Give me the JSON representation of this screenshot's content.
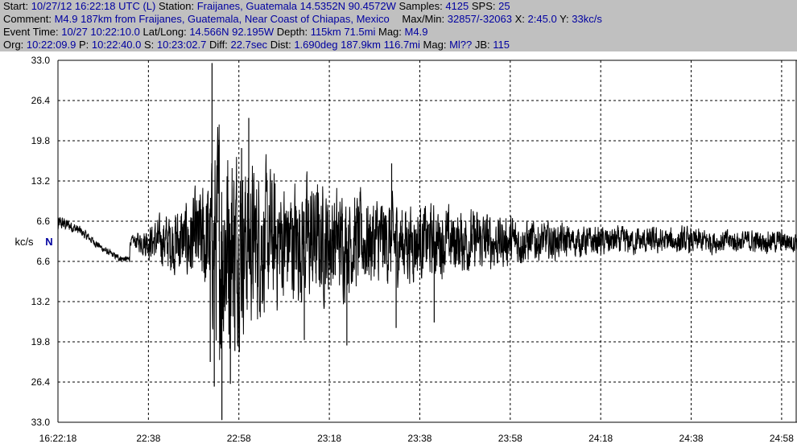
{
  "header": {
    "line1": {
      "start_label": "Start:",
      "start_value": "10/27/12 16:22:18 UTC (L)",
      "station_label": "Station:",
      "station_value": "Fraijanes, Guatemala 14.5352N 90.4572W",
      "samples_label": "Samples:",
      "samples_value": "4125",
      "sps_label": "SPS:",
      "sps_value": "25"
    },
    "line2": {
      "comment_label": "Comment:",
      "comment_value": "M4.9 187km from Fraijanes, Guatemala, Near Coast of Chiapas, Mexico",
      "maxmin_label": "Max/Min:",
      "maxmin_value": "32857/-32063",
      "x_label": "X:",
      "x_value": "2:45.0",
      "y_label": "Y:",
      "y_value": "33kc/s"
    },
    "line3": {
      "event_label": "Event Time:",
      "event_value": "10/27 10:22:10.0",
      "latlong_label": "Lat/Long:",
      "latlong_value": "14.566N 92.195W",
      "depth_label": "Depth:",
      "depth_value": "115km 71.5mi",
      "mag_label": "Mag:",
      "mag_value": "M4.9"
    },
    "line4": {
      "org_label": "Org:",
      "org_value": "10:22:09.9",
      "p_label": "P:",
      "p_value": "10:22:40.0",
      "s_label": "S:",
      "s_value": "10:23:02.7",
      "diff_label": "Diff:",
      "diff_value": "22.7sec",
      "dist_label": "Dist:",
      "dist_value": "1.690deg 187.9km 116.7mi",
      "mag_label": "Mag:",
      "mag_value": "Ml??",
      "jb_label": "JB:",
      "jb_value": "115"
    }
  },
  "chart_data": {
    "type": "line",
    "title": "",
    "xlabel": "",
    "ylabel": "kc/s",
    "center_label": "N",
    "ylim": [
      -33.0,
      33.0
    ],
    "y_tick_labels": [
      "33.0",
      "26.4",
      "19.8",
      "13.2",
      "6.6",
      "6.6",
      "13.2",
      "19.8",
      "26.4",
      "33.0"
    ],
    "x_tick_labels": [
      "16:22:18",
      "22:38",
      "22:58",
      "23:18",
      "23:38",
      "23:58",
      "24:18",
      "24:38",
      "24:58"
    ],
    "grid": true,
    "colors": {
      "trace": "#000000",
      "grid": "#000000",
      "header_bg": "#c0c0c0",
      "value_text": "#0000a0"
    },
    "series": [
      {
        "x_sec": [
          0,
          8,
          16,
          20,
          24,
          26,
          28,
          30,
          32,
          34,
          36,
          38,
          40,
          42,
          44,
          46,
          48,
          50,
          52,
          54,
          56,
          58,
          60,
          62,
          64,
          66,
          68,
          70,
          72,
          74,
          76,
          78,
          80,
          82,
          84,
          86,
          88,
          90,
          92,
          94,
          96,
          98,
          100,
          102,
          104,
          106,
          108,
          110,
          112,
          114,
          116,
          120,
          130,
          140,
          150,
          160,
          165
        ],
        "envelope": [
          2.0,
          1.0,
          0.8,
          4.5,
          7.0,
          9.0,
          9.5,
          12.0,
          14.0,
          18.0,
          33.0,
          30.0,
          25.0,
          22.0,
          20.0,
          19.0,
          18.5,
          17.0,
          16.0,
          16.0,
          17.0,
          16.0,
          15.0,
          14.0,
          13.5,
          13.0,
          12.5,
          12.0,
          12.0,
          11.5,
          11.0,
          10.5,
          10.0,
          9.5,
          9.5,
          9.0,
          8.5,
          8.5,
          8.0,
          8.0,
          7.5,
          7.0,
          6.5,
          6.5,
          6.0,
          5.5,
          5.0,
          5.0,
          4.5,
          4.5,
          4.0,
          4.0,
          3.5,
          3.5,
          3.0,
          3.0,
          3.0
        ],
        "peaks": [
          {
            "x_sec": 34.0,
            "y": -22.0
          },
          {
            "x_sec": 34.4,
            "y": 32.5
          },
          {
            "x_sec": 34.9,
            "y": -26.5
          },
          {
            "x_sec": 36.6,
            "y": -32.6
          },
          {
            "x_sec": 36.0,
            "y": 18.5
          },
          {
            "x_sec": 38.5,
            "y": -26.0
          },
          {
            "x_sec": 42.6,
            "y": 22.5
          },
          {
            "x_sec": 41.0,
            "y": 17.0
          },
          {
            "x_sec": 39.5,
            "y": -20.0
          },
          {
            "x_sec": 74.5,
            "y": 14.2
          },
          {
            "x_sec": 75.5,
            "y": -15.8
          },
          {
            "x_sec": 84.0,
            "y": -14.8
          },
          {
            "x_sec": 64.5,
            "y": -19.0
          },
          {
            "x_sec": 55.0,
            "y": -18.0
          }
        ]
      }
    ]
  }
}
